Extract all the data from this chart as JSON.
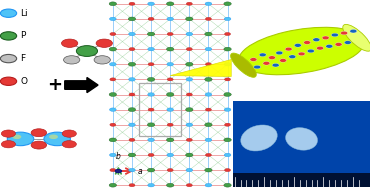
{
  "background_color": "#ffffff",
  "legend_items": [
    {
      "label": "Li",
      "color": "#4fc3f7",
      "edge": "#2196f3"
    },
    {
      "label": "P",
      "color": "#43a047",
      "edge": "#1b5e20"
    },
    {
      "label": "F",
      "color": "#c0c0c0",
      "edge": "#555555"
    },
    {
      "label": "O",
      "color": "#e53935",
      "edge": "#b71c1c"
    }
  ],
  "po2f2_color": "#43a047",
  "po2f2_edge": "#1b5e20",
  "po2f2_o_color": "#e53935",
  "po2f2_o_edge": "#b71c1c",
  "po2f2_f_color": "#c0c0c0",
  "po2f2_f_edge": "#555555",
  "li_color": "#4fc3f7",
  "li_edge": "#2196f3",
  "li_inner": "#a5d6a7",
  "tube_color": "#ccff00",
  "tube_edge": "#aacc00",
  "photo_bg": "#0044aa",
  "ruler_bg": "#001133",
  "crystal_bg": "#ffffff",
  "bond_red": "#e57373",
  "bond_blue": "#64b5f6",
  "bond_green": "#66bb6a"
}
